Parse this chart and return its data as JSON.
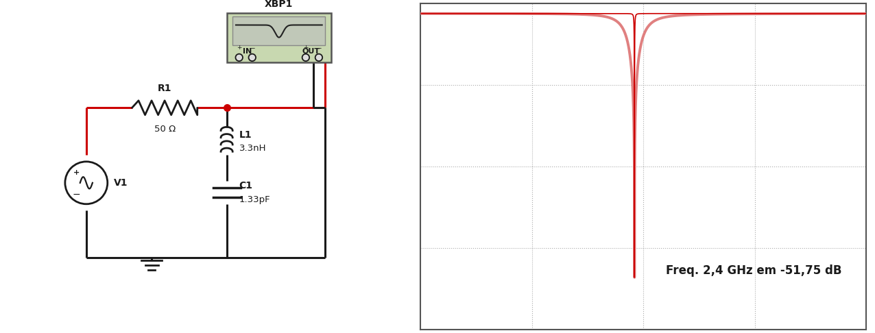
{
  "annotation_text": "Freq. 2,4 GHz em -51,75 dB",
  "annotation_fontsize": 12,
  "plot_bg": "#ffffff",
  "grid_color": "#bbbbbb",
  "curve_color": "#cc0000",
  "curve_color_light": "#e08080",
  "f0": 2.4,
  "f_min": 0.0,
  "f_max": 5.0,
  "y_min": -62,
  "y_max": 2,
  "notch_depth": -51.75,
  "Q_narrow": 300,
  "Q_wide": 8,
  "border_color": "#555555",
  "schematic_bg": "#ffffff",
  "xbp1_bg": "#c8d8b0",
  "xbp1_label": "XBP1",
  "r1_label": "R1",
  "r1_value": "50 Ω",
  "l1_label": "L1",
  "l1_value": "3.3nH",
  "c1_label": "C1",
  "c1_value": "1.33pF",
  "v1_label": "V1",
  "red_wire": "#cc0000",
  "black_wire": "#1a1a1a"
}
